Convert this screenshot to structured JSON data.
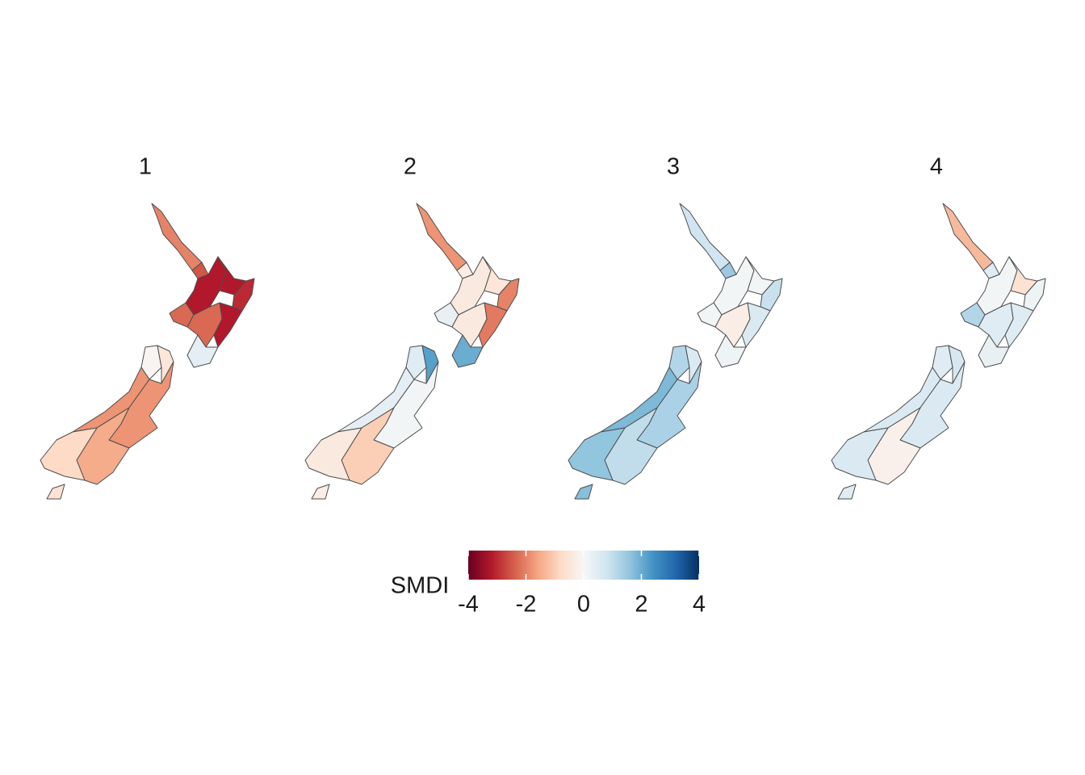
{
  "chart_data": {
    "type": "choropleth",
    "panels": [
      {
        "title": "1",
        "values": [
          -2,
          -2.5,
          -3.2,
          -3.2,
          -3,
          -3.2,
          -2.3,
          -2.3,
          0.4,
          -0.1,
          -0.5,
          -1.8,
          -1.8,
          -1.5,
          -0.8,
          -0.6
        ]
      },
      {
        "title": "2",
        "values": [
          -1.8,
          -0.3,
          -0.4,
          -0.5,
          -2,
          -2.1,
          0.3,
          -0.4,
          2,
          0.5,
          2.2,
          0.4,
          0.1,
          -1,
          -0.4,
          -0.3
        ]
      },
      {
        "title": "3",
        "values": [
          0.8,
          1.5,
          0.1,
          0.1,
          0.9,
          0.6,
          0.1,
          -0.3,
          0.2,
          1.2,
          0.6,
          1.8,
          1.3,
          1,
          1.6,
          1.7
        ]
      },
      {
        "title": "4",
        "values": [
          -1.3,
          0.5,
          0.1,
          -0.6,
          0.2,
          0.5,
          1.2,
          0.5,
          0.3,
          0.5,
          0.7,
          0.6,
          0.6,
          -0.2,
          0.6,
          0.5
        ]
      }
    ],
    "legend": {
      "title": "SMDI",
      "lim": [
        -4,
        4
      ],
      "ticks": [
        -4,
        -2,
        0,
        2,
        4
      ],
      "colors": [
        "#67001f",
        "#b2182b",
        "#d6604d",
        "#f4a582",
        "#fddbc7",
        "#f7f7f7",
        "#d1e5f0",
        "#92c5de",
        "#4393c3",
        "#2166ac",
        "#053061"
      ]
    }
  }
}
